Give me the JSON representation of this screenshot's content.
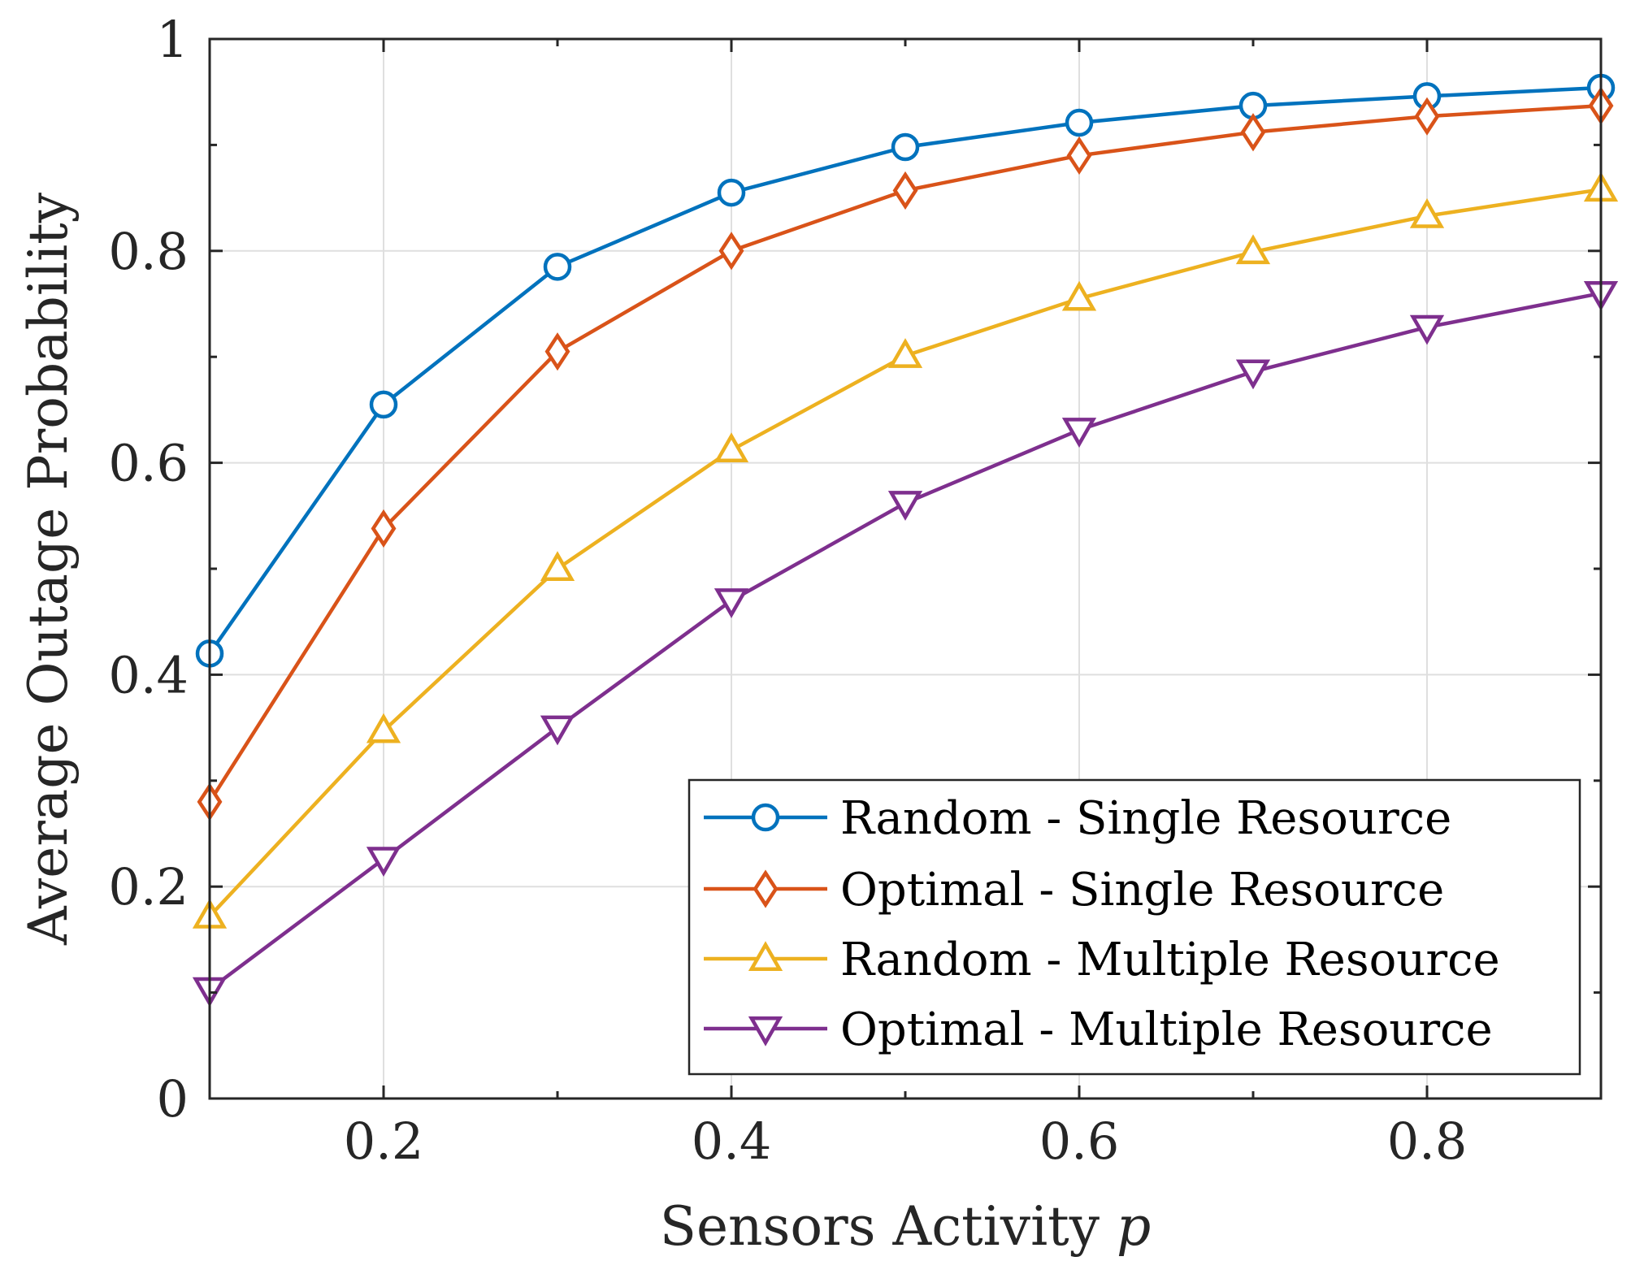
{
  "chart_data": {
    "type": "line",
    "title": "",
    "xlabel": "Sensors Activity",
    "xlabel_var": "p",
    "ylabel": "Average Outage Probability",
    "x": [
      0.1,
      0.2,
      0.3,
      0.4,
      0.5,
      0.6,
      0.7,
      0.8,
      0.9
    ],
    "xlim": [
      0.1,
      0.9
    ],
    "ylim": [
      0,
      1
    ],
    "xticks": [
      0.2,
      0.4,
      0.6,
      0.8
    ],
    "xtick_labels": [
      "0.2",
      "0.4",
      "0.6",
      "0.8"
    ],
    "yticks": [
      0,
      0.2,
      0.4,
      0.6,
      0.8,
      1
    ],
    "ytick_labels": [
      "0",
      "0.2",
      "0.4",
      "0.6",
      "0.8",
      "1"
    ],
    "grid": true,
    "legend_position": "bottom-right",
    "series": [
      {
        "name": "Random - Single Resource",
        "color": "#0072BD",
        "marker": "circle",
        "values": [
          0.42,
          0.655,
          0.785,
          0.855,
          0.898,
          0.921,
          0.937,
          0.946,
          0.954
        ]
      },
      {
        "name": "Optimal - Single Resource",
        "color": "#D95319",
        "marker": "diamond",
        "values": [
          0.28,
          0.538,
          0.705,
          0.8,
          0.857,
          0.89,
          0.912,
          0.927,
          0.937
        ]
      },
      {
        "name": "Random - Multiple Resource",
        "color": "#EDB120",
        "marker": "triangle-up",
        "values": [
          0.172,
          0.347,
          0.5,
          0.612,
          0.701,
          0.755,
          0.799,
          0.833,
          0.858
        ]
      },
      {
        "name": "Optimal - Multiple Resource",
        "color": "#7E2F8E",
        "marker": "triangle-down",
        "values": [
          0.103,
          0.226,
          0.35,
          0.47,
          0.562,
          0.631,
          0.686,
          0.728,
          0.76
        ]
      }
    ]
  }
}
